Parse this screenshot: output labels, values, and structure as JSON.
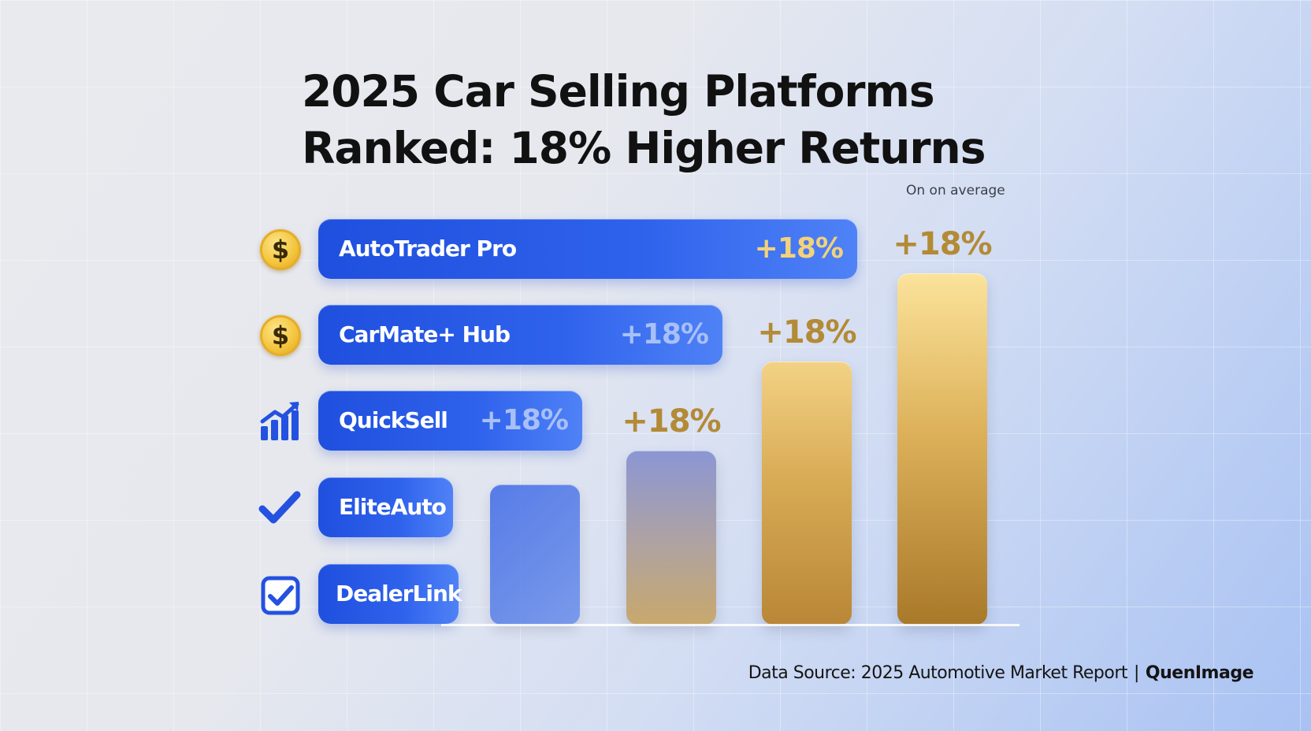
{
  "title_line1": "2025 Car Selling Platforms",
  "title_line2": "Ranked: 18% Higher Returns",
  "subtitle": "On on average",
  "footer": {
    "source": "Data Source: 2025 Automotive Market Report",
    "separator": "|",
    "brand": "QuenImage"
  },
  "colors": {
    "bar_blue": "#2f62ec",
    "gold": "#d9aa52",
    "value_gold": "#f3d27a",
    "value_faded": "#a9c0f7",
    "label_gold": "#b38a36"
  },
  "icons": [
    "dollar-coin-icon",
    "dollar-coin-icon",
    "bar-chart-up-icon",
    "checkmark-icon",
    "checkbox-icon"
  ],
  "chart_data": [
    {
      "type": "bar",
      "orientation": "horizontal",
      "categories": [
        "AutoTrader Pro",
        "CarMate+ Hub",
        "QuickSell",
        "EliteAuto",
        "DealerLink"
      ],
      "value_labels": [
        "+18%",
        "+18%",
        "+18%",
        "",
        ""
      ],
      "values": [
        100,
        75,
        49,
        25,
        26
      ]
    },
    {
      "type": "bar",
      "orientation": "vertical",
      "values": [
        100,
        124,
        187,
        250
      ],
      "value_labels": [
        "",
        "+18%",
        "+18%",
        "+18%"
      ]
    }
  ]
}
